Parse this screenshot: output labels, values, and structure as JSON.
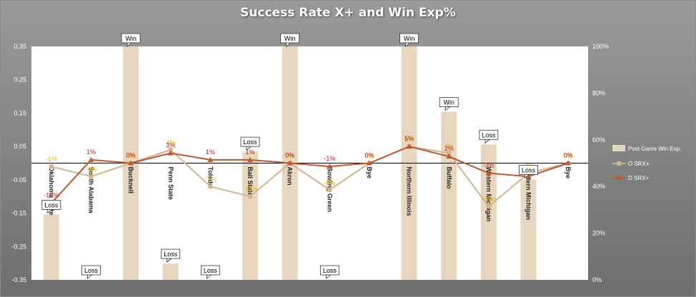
{
  "chart_data": {
    "type": "bar+line",
    "title": "Success Rate X+ and Win Exp%",
    "categories": [
      "Oklahoma State",
      "South Alabama",
      "Bucknell",
      "Penn State",
      "Toledo",
      "Ball State",
      "Akron",
      "Bowling Green",
      "Bye",
      "Northern Illinois",
      "Buffalo",
      "Western Michigan",
      "Eastern Michigan",
      "Bye"
    ],
    "y_left": {
      "min": -0.35,
      "max": 0.35,
      "ticks": [
        "-0.35",
        "-0.25",
        "-0.15",
        "-0.05",
        "0.05",
        "0.15",
        "0.25",
        "0.35"
      ]
    },
    "y_right": {
      "min": 0,
      "max": 100,
      "ticks": [
        "0%",
        "20%",
        "40%",
        "60%",
        "80%",
        "100%"
      ]
    },
    "bars": {
      "name": "Post Game Win Exp.",
      "values": [
        28,
        0,
        100,
        7,
        0,
        55,
        100,
        0,
        null,
        100,
        72,
        58,
        43,
        null
      ],
      "results": [
        "Loss",
        "Loss",
        "Win",
        "Loss",
        "Loss",
        "Loss",
        "Win",
        "Loss",
        "",
        "Win",
        "Win",
        "Loss",
        "Loss",
        ""
      ]
    },
    "series": [
      {
        "name": "O SRX+",
        "values": [
          -0.01,
          -0.04,
          0.0,
          0.04,
          -0.07,
          -0.1,
          0.0,
          -0.08,
          0.0,
          0.05,
          0.03,
          -0.13,
          -0.03,
          0.0
        ],
        "labels": [
          "-1%",
          "-4%",
          "0%",
          "4%",
          "-7%",
          "-10%",
          "0%",
          "-8%",
          "0%",
          "5%",
          "3%",
          "-13%",
          "-3%",
          "0%"
        ]
      },
      {
        "name": "D SRX+",
        "values": [
          -0.12,
          0.01,
          0.0,
          0.03,
          0.01,
          0.01,
          0.0,
          -0.01,
          0.0,
          0.05,
          0.02,
          -0.03,
          -0.04,
          0.0
        ],
        "labels": [
          "-12%",
          "1%",
          "0%",
          "3%",
          "1%",
          "1%",
          "0%",
          "-1%",
          "0%",
          "5%",
          "2%",
          "-3%",
          "-4%",
          "0%"
        ]
      }
    ],
    "colors": {
      "bar": "#e8d7bf",
      "o_line": "#d2b48c",
      "d_line": "#c0572e",
      "o_label": "#f0b400",
      "d_label": "#b22222"
    },
    "legend_position": "right"
  }
}
